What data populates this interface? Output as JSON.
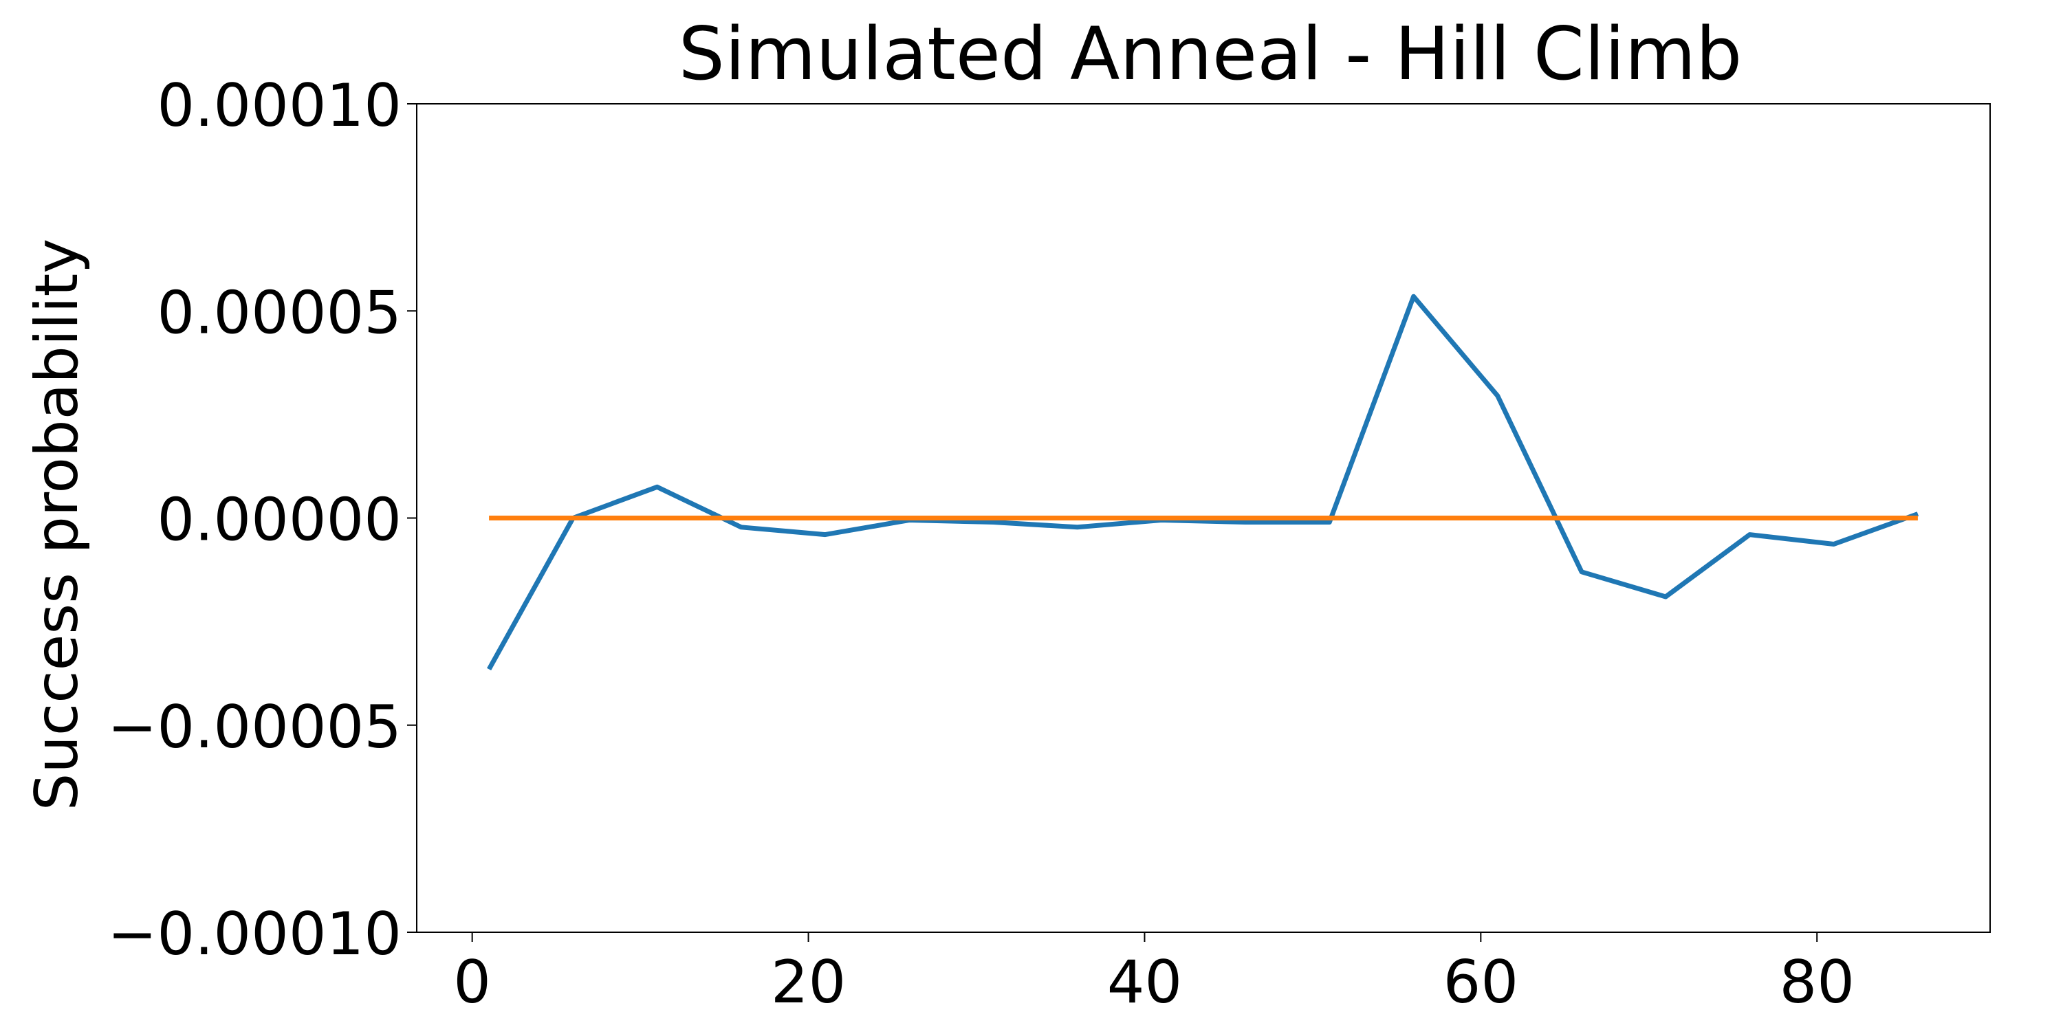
{
  "chart_data": {
    "type": "line",
    "title": "Simulated Anneal - Hill Climb",
    "xlabel": "",
    "ylabel": "Success probability",
    "xlim": [
      -3.3,
      90.3
    ],
    "ylim": [
      -0.0001,
      0.0001
    ],
    "x_ticks": [
      0,
      20,
      40,
      60,
      80
    ],
    "y_ticks": [
      -0.0001,
      -5e-05,
      0,
      5e-05,
      0.0001
    ],
    "x_tick_labels": [
      "0",
      "20",
      "40",
      "60",
      "80"
    ],
    "y_tick_labels": [
      "−0.00010",
      "−0.00005",
      "0.00000",
      "0.00005",
      "0.00010"
    ],
    "grid": false,
    "legend": "none",
    "series": [
      {
        "color": "#1f77b4",
        "x": [
          1,
          6,
          11,
          16,
          21,
          26,
          31,
          36,
          41,
          46,
          51,
          56,
          61,
          66,
          71,
          76,
          81,
          86
        ],
        "y": [
          -3.65e-05,
          0.0,
          7.5e-06,
          -2.2e-06,
          -4e-06,
          -5e-07,
          -1e-06,
          -2.2e-06,
          -5e-07,
          -1e-06,
          -1e-06,
          5.35e-05,
          2.95e-05,
          -1.3e-05,
          -1.9e-05,
          -4e-06,
          -6.3e-06,
          1e-06
        ]
      },
      {
        "color": "#ff7f0e",
        "x": [
          1,
          6,
          11,
          16,
          21,
          26,
          31,
          36,
          41,
          46,
          51,
          56,
          61,
          66,
          71,
          76,
          81,
          86
        ],
        "y": [
          0,
          0,
          0,
          0,
          0,
          0,
          0,
          0,
          0,
          0,
          0,
          0,
          0,
          0,
          0,
          0,
          0,
          0
        ]
      }
    ]
  }
}
